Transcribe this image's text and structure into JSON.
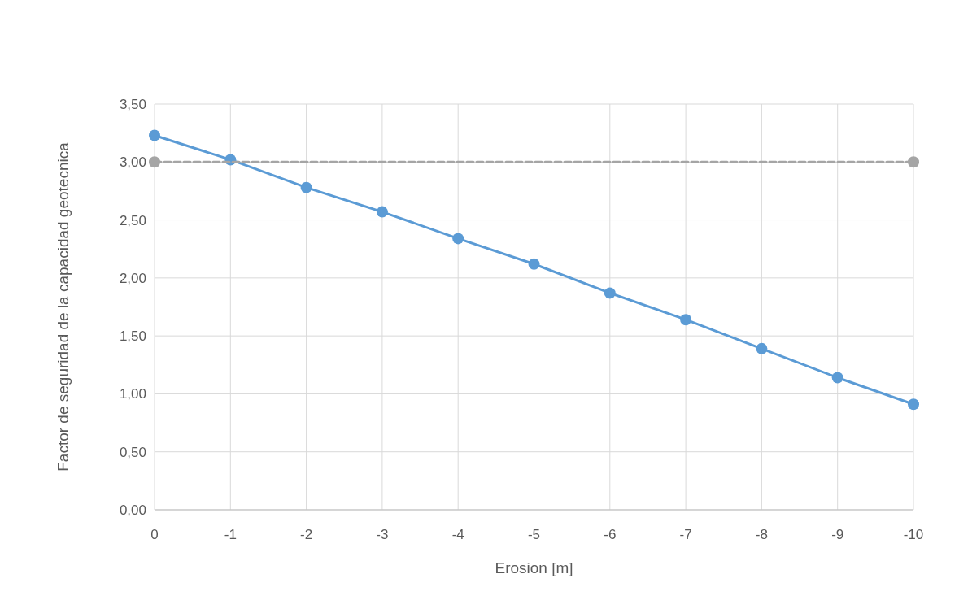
{
  "chart_data": {
    "type": "line",
    "xlabel": "Erosion [m]",
    "ylabel": "Factor de seguridad de la capacidad geotecnica",
    "xlim": [
      0,
      -10
    ],
    "xticks": [
      0,
      -1,
      -2,
      -3,
      -4,
      -5,
      -6,
      -7,
      -8,
      -9,
      -10
    ],
    "ylim": [
      0,
      3.5
    ],
    "yticks": [
      {
        "value": 0,
        "label": "0,00"
      },
      {
        "value": 0.5,
        "label": "0,50"
      },
      {
        "value": 1,
        "label": "1,00"
      },
      {
        "value": 1.5,
        "label": "1,50"
      },
      {
        "value": 2,
        "label": "2,00"
      },
      {
        "value": 2.5,
        "label": "2,50"
      },
      {
        "value": 3,
        "label": "3,00"
      },
      {
        "value": 3.5,
        "label": "3,50"
      }
    ],
    "grid": true,
    "marker": "circle",
    "series": [
      {
        "color": "#5b9bd5",
        "line_style": "solid",
        "x": [
          0,
          -1,
          -2,
          -3,
          -4,
          -5,
          -6,
          -7,
          -8,
          -9,
          -10
        ],
        "values": [
          3.23,
          3.02,
          2.78,
          2.57,
          2.34,
          2.12,
          1.87,
          1.64,
          1.39,
          1.14,
          0.91
        ]
      },
      {
        "color": "#a5a5a5",
        "line_style": "dashed",
        "x": [
          0,
          -10
        ],
        "values": [
          3,
          3
        ]
      }
    ]
  }
}
